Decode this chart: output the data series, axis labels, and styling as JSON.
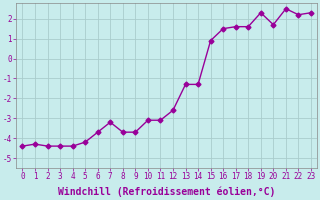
{
  "x": [
    0,
    1,
    2,
    3,
    4,
    5,
    6,
    7,
    8,
    9,
    10,
    11,
    12,
    13,
    14,
    15,
    16,
    17,
    18,
    19,
    20,
    21,
    22,
    23
  ],
  "y": [
    -4.4,
    -4.3,
    -4.4,
    -4.4,
    -4.4,
    -4.2,
    -3.7,
    -3.2,
    -3.7,
    -3.7,
    -3.1,
    -3.1,
    -2.6,
    -1.3,
    -1.3,
    0.9,
    1.5,
    1.6,
    1.6,
    2.3,
    1.7,
    2.5,
    2.2,
    2.3
  ],
  "line_color": "#990099",
  "marker": "D",
  "marker_size": 2.5,
  "bg_color": "#c8ecec",
  "grid_color": "#aacccc",
  "xlabel": "Windchill (Refroidissement éolien,°C)",
  "xlim": [
    -0.5,
    23.5
  ],
  "ylim": [
    -5.5,
    2.8
  ],
  "yticks": [
    -5,
    -4,
    -3,
    -2,
    -1,
    0,
    1,
    2
  ],
  "xticks": [
    0,
    1,
    2,
    3,
    4,
    5,
    6,
    7,
    8,
    9,
    10,
    11,
    12,
    13,
    14,
    15,
    16,
    17,
    18,
    19,
    20,
    21,
    22,
    23
  ],
  "tick_label_fontsize": 5.5,
  "xlabel_fontsize": 7,
  "tick_color": "#990099",
  "line_width": 1.0
}
